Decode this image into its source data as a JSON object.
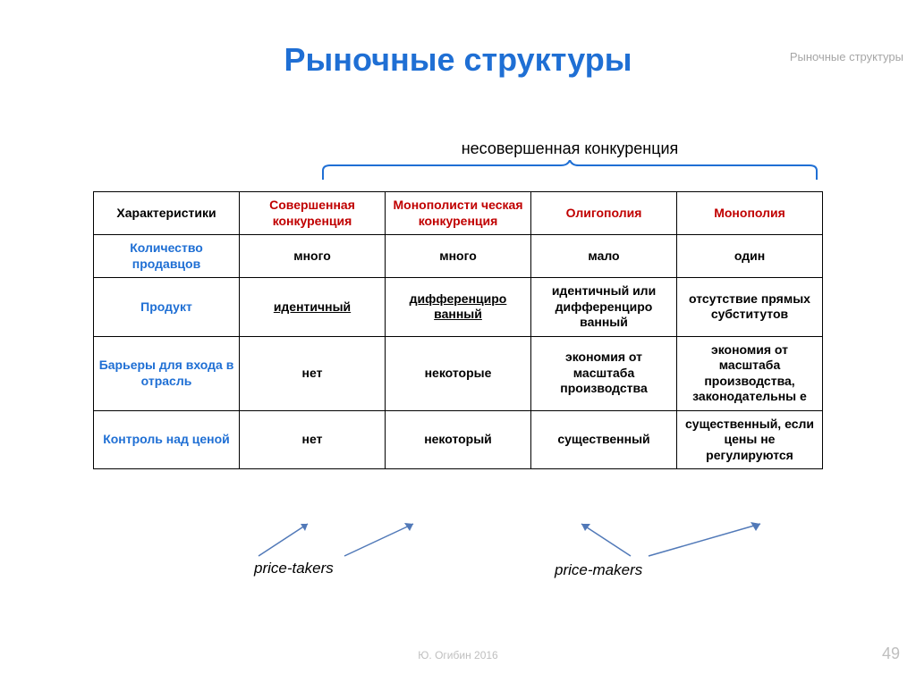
{
  "colors": {
    "title": "#1f6fd4",
    "header_red": "#c00000",
    "row_label": "#1f6fd4",
    "bracket": "#1f6fd4",
    "arrow": "#5179b8",
    "header_label": "#a6a6a6",
    "footer": "#bfbfbf"
  },
  "header_label": "Рыночные структуры",
  "title": "Рыночные структуры",
  "bracket_label": "несовершенная конкуренция",
  "table": {
    "columns": [
      "Характеристики",
      "Совершенная конкуренция",
      "Монополисти ческая конкуренция",
      "Олигополия",
      "Монополия"
    ],
    "row_labels": [
      "Количество продавцов",
      "Продукт",
      "Барьеры для входа в отрасль",
      "Контроль над ценой"
    ],
    "rows": [
      [
        "много",
        "много",
        "мало",
        "один"
      ],
      [
        "идентичный",
        "дифференциро ванный",
        "идентичный или дифференциро ванный",
        "отсутствие прямых субститутов"
      ],
      [
        "нет",
        "некоторые",
        "экономия  от масштаба производства",
        "экономия от масштаба производства, законодательны е"
      ],
      [
        "нет",
        "некоторый",
        "существенный",
        "существенный, если цены не регулируются"
      ]
    ],
    "underlined": [
      [
        1,
        0
      ],
      [
        1,
        1
      ]
    ]
  },
  "annotations": {
    "price_takers": "price-takers",
    "price_makers": "price-makers"
  },
  "footer": {
    "author": "Ю. Огибин   2016",
    "page": "49"
  }
}
